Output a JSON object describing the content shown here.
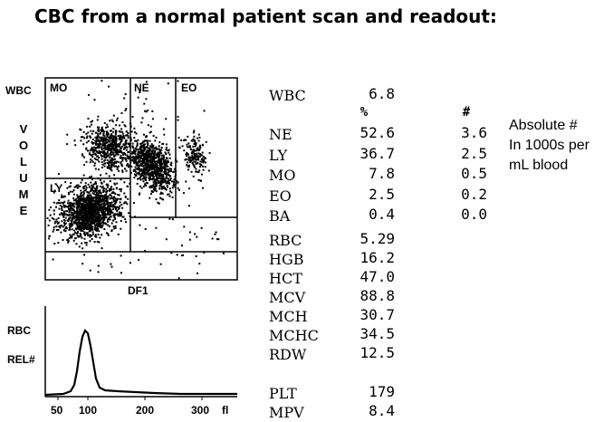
{
  "title": "CBC from a normal patient scan and readout:",
  "scatter": {
    "y_label_left": "WBC",
    "y_axis_letters": [
      "V",
      "O",
      "L",
      "U",
      "M",
      "E"
    ],
    "x_label": "DF1",
    "regions": [
      "MO",
      "NE",
      "EO",
      "LY"
    ]
  },
  "histogram": {
    "labels": [
      "RBC",
      "REL#"
    ],
    "ticks": [
      "50",
      "100",
      "200",
      "300",
      "fl"
    ]
  },
  "readout": {
    "wbc": {
      "name": "WBC",
      "value": "6.8"
    },
    "headers": {
      "percent": "%",
      "absolute": "#"
    },
    "differential": [
      {
        "name": "NE",
        "percent": "52.6",
        "absolute": "3.6"
      },
      {
        "name": "LY",
        "percent": "36.7",
        "absolute": "2.5"
      },
      {
        "name": "MO",
        "percent": "7.8",
        "absolute": "0.5"
      },
      {
        "name": "EO",
        "percent": "2.5",
        "absolute": "0.2"
      },
      {
        "name": "BA",
        "percent": "0.4",
        "absolute": "0.0"
      }
    ],
    "rbc_params": [
      {
        "name": "RBC",
        "value": "5.29"
      },
      {
        "name": "HGB",
        "value": "16.2"
      },
      {
        "name": "HCT",
        "value": "47.0"
      },
      {
        "name": "MCV",
        "value": "88.8"
      },
      {
        "name": "MCH",
        "value": "30.7"
      },
      {
        "name": "MCHC",
        "value": "34.5"
      },
      {
        "name": "RDW",
        "value": "12.5"
      }
    ],
    "plt_params": [
      {
        "name": "PLT",
        "value": "179"
      },
      {
        "name": "MPV",
        "value": "8.4"
      }
    ]
  },
  "note": {
    "line1": "Absolute #",
    "line2": "In 1000s per",
    "line3": "mL blood"
  }
}
